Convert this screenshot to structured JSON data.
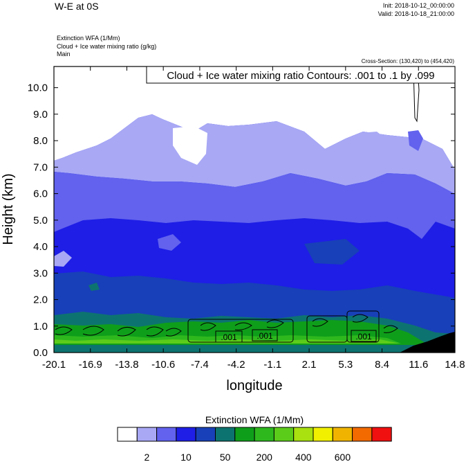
{
  "header": {
    "title": "W-E at 0S",
    "init": "Init: 2018-10-12_00:00:00",
    "valid": "Valid: 2018-10-18_21:00:00",
    "field_line1": "Extinction WFA   (1/Mm)",
    "field_line2": "Cloud + Ice water mixing ratio   (g/kg)",
    "field_line3": "Main",
    "cross_section": "Cross-Section: (130,420) to (454,420)"
  },
  "chart_data": {
    "type": "heatmap",
    "title": "W-E at 0S",
    "xlabel": "longitude",
    "ylabel": "Height (km)",
    "xlim": [
      -20.1,
      14.8
    ],
    "ylim": [
      0.0,
      10.8
    ],
    "x_ticks": [
      "-20.1",
      "-16.9",
      "-13.8",
      "-10.6",
      "-7.4",
      "-4.2",
      "-1.1",
      "2.1",
      "5.3",
      "8.4",
      "11.6",
      "14.8"
    ],
    "y_ticks": [
      "0.0",
      "1.0",
      "2.0",
      "3.0",
      "4.0",
      "5.0",
      "6.0",
      "7.0",
      "8.0",
      "9.0",
      "10.0"
    ],
    "contour_info": "Cloud + Ice water mixing ratio Contours: .001 to .1 by .099",
    "contour_labels": [
      ".001",
      ".001",
      ".001"
    ],
    "colorbar": {
      "title": "Extinction WFA  (1/Mm)",
      "tick_labels": [
        "2",
        "10",
        "50",
        "200",
        "400",
        "600"
      ],
      "colors": [
        "#ffffff",
        "#a8a8f5",
        "#6262ee",
        "#1e1ee6",
        "#1840b8",
        "#0d7370",
        "#0f9e1a",
        "#2eb81e",
        "#5ccc1a",
        "#a8e010",
        "#f0f000",
        "#f0b400",
        "#f26a00",
        "#f01010"
      ]
    }
  }
}
